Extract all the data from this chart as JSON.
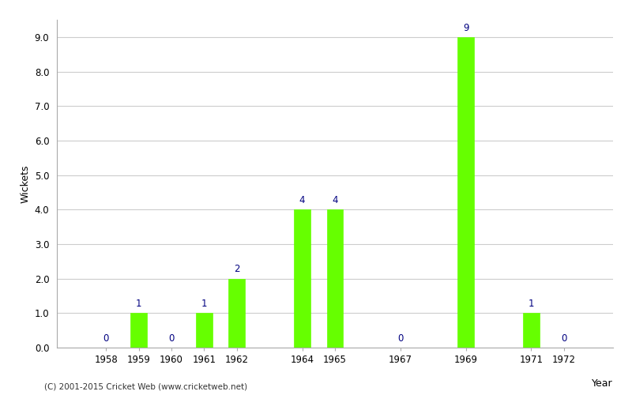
{
  "years": [
    1958,
    1959,
    1960,
    1961,
    1962,
    1964,
    1965,
    1967,
    1969,
    1971,
    1972
  ],
  "wickets": [
    0,
    1,
    0,
    1,
    2,
    4,
    4,
    0,
    9,
    1,
    0
  ],
  "bar_color": "#66ff00",
  "bar_edge_color": "#66ff00",
  "label_color": "#000080",
  "xlabel": "Year",
  "ylabel": "Wickets",
  "ylim": [
    0,
    9.5
  ],
  "yticks": [
    0.0,
    1.0,
    2.0,
    3.0,
    4.0,
    5.0,
    6.0,
    7.0,
    8.0,
    9.0
  ],
  "background_color": "#ffffff",
  "grid_color": "#cccccc",
  "footnote": "(C) 2001-2015 Cricket Web (www.cricketweb.net)",
  "bar_width": 0.5,
  "xlim": [
    1956.5,
    1973.5
  ]
}
